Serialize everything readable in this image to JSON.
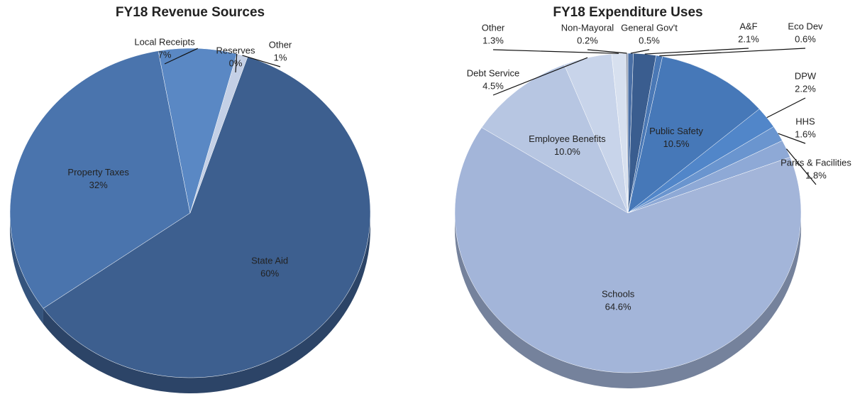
{
  "chart_data": [
    {
      "type": "pie",
      "title": "FY18 Revenue Sources",
      "categories": [
        "Reserves",
        "Other",
        "State Aid",
        "Property Taxes",
        "Local Receipts"
      ],
      "values": [
        0,
        1,
        60,
        32,
        7
      ],
      "value_labels": [
        "0%",
        "1%",
        "60%",
        "32%",
        "7%"
      ],
      "colors": [
        "#8fa3c4",
        "#c4d0e6",
        "#3d5f8f",
        "#4a74ad",
        "#5a88c4"
      ]
    },
    {
      "type": "pie",
      "title": "FY18 Expenditure Uses",
      "categories": [
        "General Gov't",
        "A&F",
        "Eco Dev",
        "Public Safety",
        "DPW",
        "HHS",
        "Parks & Facilities",
        "Schools",
        "Employee Benefits",
        "Debt Service",
        "Other",
        "Non-Mayoral"
      ],
      "values": [
        0.5,
        2.1,
        0.6,
        10.5,
        2.2,
        1.6,
        1.8,
        64.6,
        10.0,
        4.5,
        1.3,
        0.2
      ],
      "value_labels": [
        "0.5%",
        "2.1%",
        "0.6%",
        "10.5%",
        "2.2%",
        "1.6%",
        "1.8%",
        "64.6%",
        "10.0%",
        "4.5%",
        "1.3%",
        "0.2%"
      ],
      "colors": [
        "#4a6fa5",
        "#3a5d8f",
        "#4a78b5",
        "#4678b8",
        "#5186c9",
        "#6a95cf",
        "#8ea9d6",
        "#a3b5d9",
        "#b7c6e2",
        "#c8d4ea",
        "#d7e0ef",
        "#a0a8b8"
      ]
    }
  ]
}
